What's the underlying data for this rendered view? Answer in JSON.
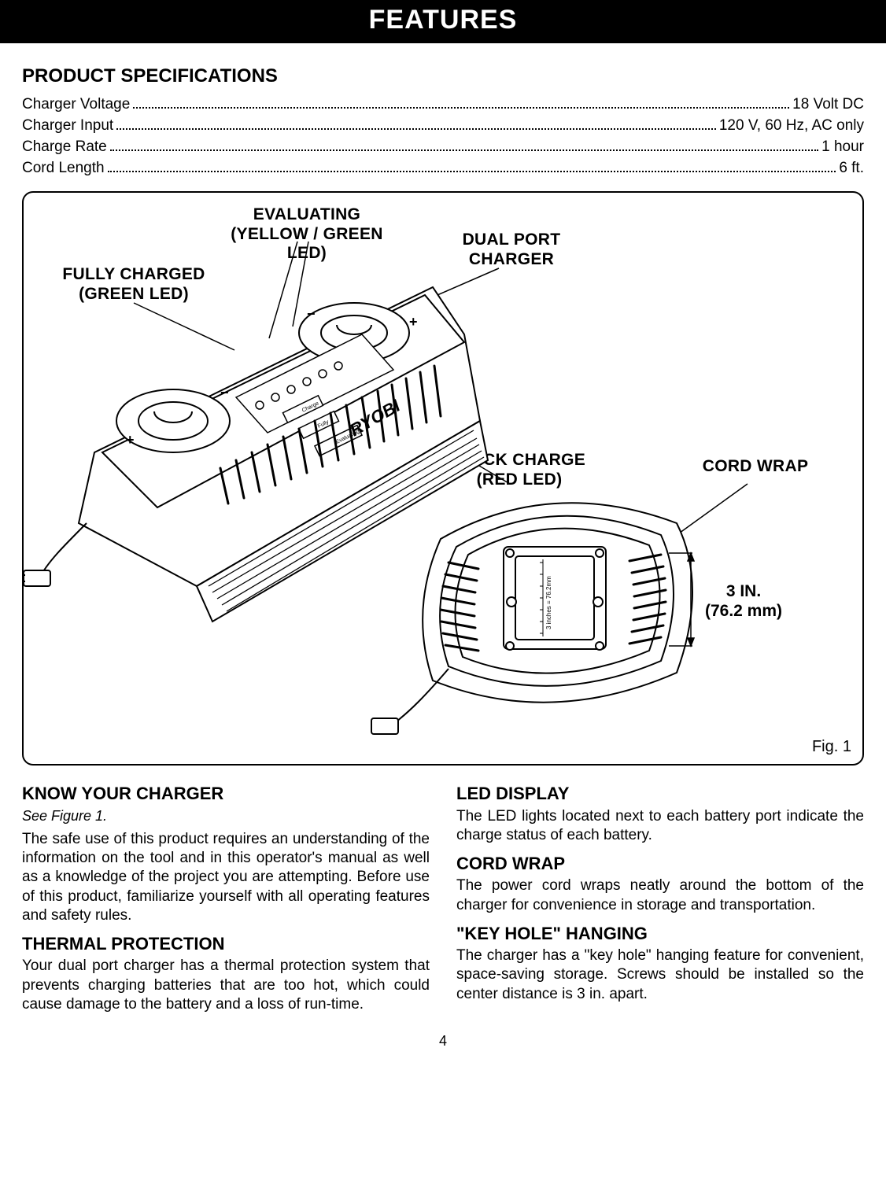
{
  "title": "FEATURES",
  "specHeading": "PRODUCT SPECIFICATIONS",
  "specs": [
    {
      "label": "Charger Voltage",
      "value": "18 Volt DC"
    },
    {
      "label": "Charger Input",
      "value": "120 V, 60 Hz, AC only"
    },
    {
      "label": "Charge Rate",
      "value": "1 hour"
    },
    {
      "label": "Cord Length",
      "value": "6 ft."
    }
  ],
  "figure": {
    "caption": "Fig. 1",
    "callouts": {
      "evaluating": "EVALUATING\n(YELLOW / GREEN LED)",
      "dualPort": "DUAL PORT\nCHARGER",
      "fullyCharged": "FULLY CHARGED\n(GREEN LED)",
      "quickCharge": "QUICK CHARGE\n(RED LED)",
      "cordWrap": "CORD WRAP",
      "dimension": "3 IN.\n(76.2 mm)"
    },
    "chargerLabel1": "Charge",
    "chargerLabel2": "Fully",
    "chargerLabel3": "Evaluating",
    "brand": "RYOBI",
    "rulerText": "3 inches = 76.2mm"
  },
  "leftCol": {
    "h1": "KNOW YOUR CHARGER",
    "see": "See Figure 1.",
    "p1": "The safe use of this product requires an understanding of the information on the tool and in this operator's manual as well as a knowledge of the project you are attempting. Before use of this product, familiarize yourself with all operating features and safety rules.",
    "h2": "THERMAL PROTECTION",
    "p2": "Your dual port charger has a thermal protection system that prevents charging batteries that are too hot, which could cause damage to the battery and a loss of run-time."
  },
  "rightCol": {
    "h1": "LED DISPLAY",
    "p1": "The LED lights located next to each battery port indicate the charge status of each battery.",
    "h2": "CORD WRAP",
    "p2": "The power cord wraps neatly around the bottom of the charger for convenience in storage and transportation.",
    "h3": "\"KEY HOLE\" HANGING",
    "p3": "The charger has a \"key hole\" hanging feature for convenient, space-saving storage. Screws should be installed so the center distance is 3 in. apart."
  },
  "pageNumber": "4",
  "colors": {
    "black": "#000000",
    "white": "#ffffff",
    "grey": "#bfbfbf"
  }
}
